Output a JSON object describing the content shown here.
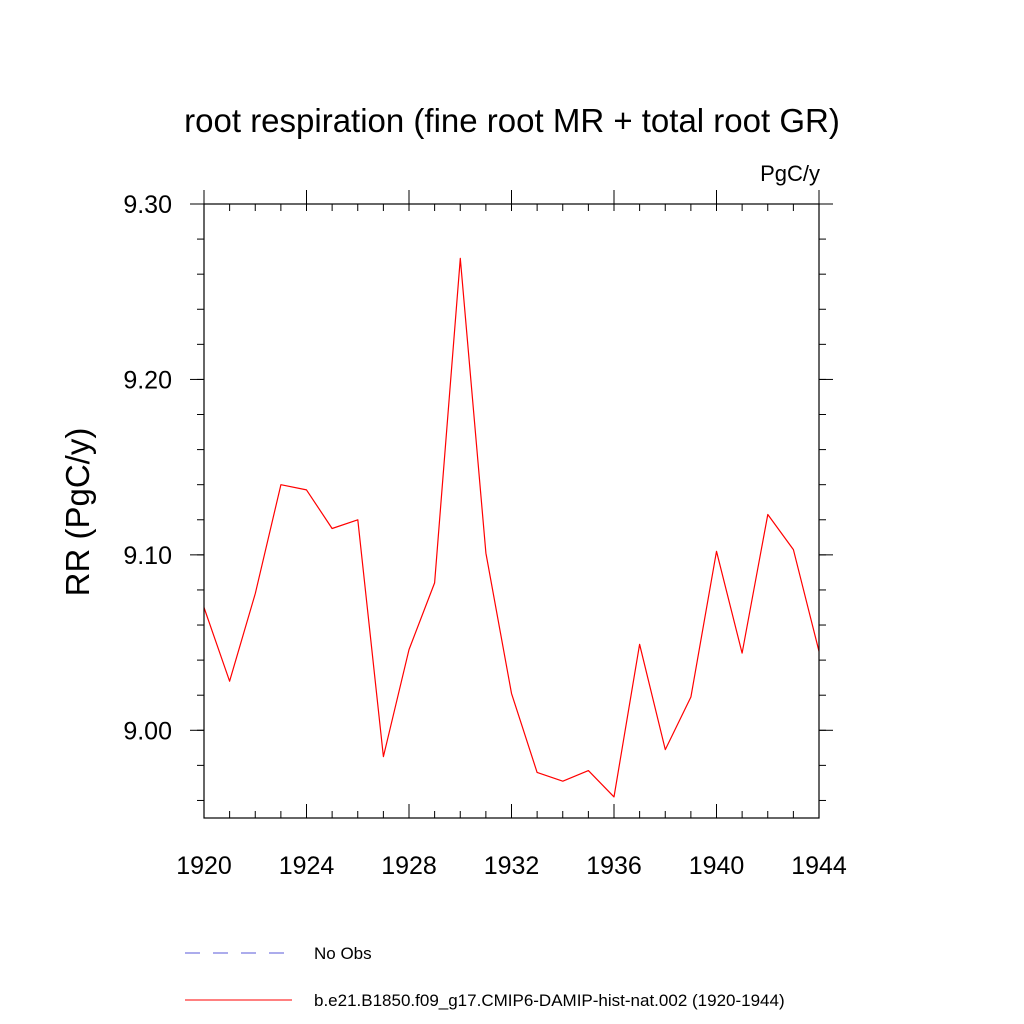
{
  "chart_data": {
    "type": "line",
    "title": "root respiration (fine root MR + total root GR)",
    "units_label": "PgC/y",
    "ylabel": "RR  (PgC/y)",
    "xlabel": "",
    "xlim": [
      1920,
      1944
    ],
    "ylim": [
      8.95,
      9.3
    ],
    "x_ticks": [
      1920,
      1924,
      1928,
      1932,
      1936,
      1940,
      1944
    ],
    "x_tick_labels": [
      "1920",
      "1924",
      "1928",
      "1932",
      "1936",
      "1940",
      "1944"
    ],
    "y_ticks": [
      9.0,
      9.1,
      9.2,
      9.3
    ],
    "y_tick_labels": [
      "9.00",
      "9.10",
      "9.20",
      "9.30"
    ],
    "x_minor_step": 1,
    "y_minor_step": 0.02,
    "grid": false,
    "legend_position": "bottom",
    "series": [
      {
        "name": "b.e21.B1850.f09_g17.CMIP6-DAMIP-hist-nat.002 (1920-1944)",
        "color": "#ff0000",
        "style": "solid",
        "x": [
          1920,
          1921,
          1922,
          1923,
          1924,
          1925,
          1926,
          1927,
          1928,
          1929,
          1930,
          1931,
          1932,
          1933,
          1934,
          1935,
          1936,
          1937,
          1938,
          1939,
          1940,
          1941,
          1942,
          1943,
          1944
        ],
        "y": [
          9.07,
          9.028,
          9.078,
          9.14,
          9.137,
          9.115,
          9.12,
          8.985,
          9.046,
          9.084,
          9.269,
          9.101,
          9.021,
          8.976,
          8.971,
          8.977,
          8.962,
          9.049,
          8.989,
          9.019,
          9.102,
          9.044,
          9.123,
          9.103,
          9.045
        ]
      }
    ],
    "legend": [
      {
        "label": "No Obs",
        "color": "#5a5ad8",
        "style": "dashed"
      },
      {
        "label": "b.e21.B1850.f09_g17.CMIP6-DAMIP-hist-nat.002 (1920-1944)",
        "color": "#ff0000",
        "style": "solid"
      }
    ]
  }
}
